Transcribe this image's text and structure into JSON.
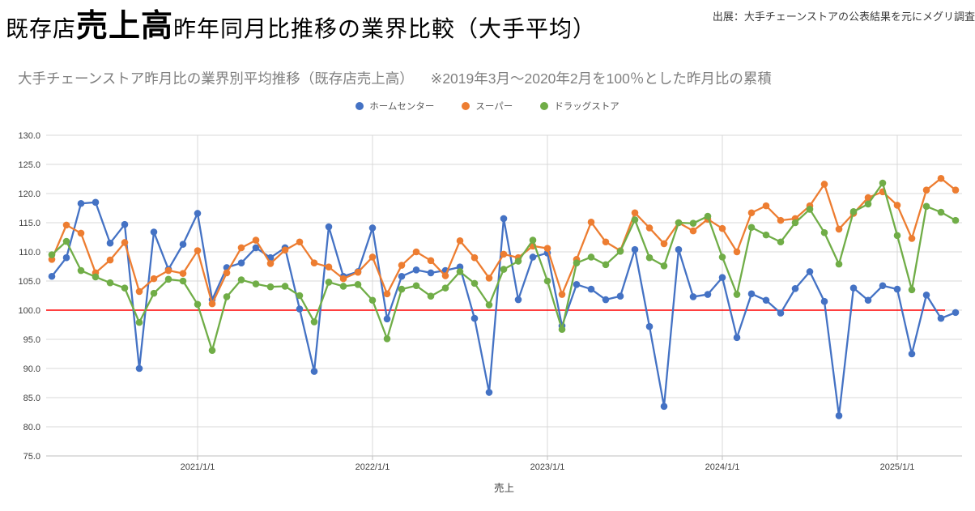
{
  "header": {
    "title_prefix": "既存店",
    "title_emphasis": "売上高",
    "title_suffix": "昨年同月比推移の業界比較（大手平均）",
    "source": "出展：大手チェーンストアの公表結果を元にメグリ調査"
  },
  "chart_data": {
    "type": "line",
    "title": "大手チェーンストア昨月比の業界別平均推移（既存店売上高）",
    "note": "※2019年3月～2020年2月を100％とした昨月比の累積",
    "xlabel": "売上",
    "ylabel": "",
    "ylim": [
      75,
      130
    ],
    "ytick_step": 5,
    "grid": true,
    "legend_position": "top",
    "grid_color": "#D9D9D9",
    "axis_color": "#BFBFBF",
    "tick_color": "#404040",
    "reference_line": {
      "value": 100,
      "color": "#FF0000"
    },
    "xticks": [
      {
        "label": "2021/1/1",
        "month": "2021/1"
      },
      {
        "label": "2022/1/1",
        "month": "2022/1"
      },
      {
        "label": "2023/1/1",
        "month": "2023/1"
      },
      {
        "label": "2024/1/1",
        "month": "2024/1"
      },
      {
        "label": "2025/1/1",
        "month": "2025/1"
      }
    ],
    "x": [
      "2020/3",
      "2020/4",
      "2020/5",
      "2020/6",
      "2020/7",
      "2020/8",
      "2020/9",
      "2020/10",
      "2020/11",
      "2020/12",
      "2021/1",
      "2021/2",
      "2021/3",
      "2021/4",
      "2021/5",
      "2021/6",
      "2021/7",
      "2021/8",
      "2021/9",
      "2021/10",
      "2021/11",
      "2021/12",
      "2022/1",
      "2022/2",
      "2022/3",
      "2022/4",
      "2022/5",
      "2022/6",
      "2022/7",
      "2022/8",
      "2022/9",
      "2022/10",
      "2022/11",
      "2022/12",
      "2023/1",
      "2023/2",
      "2023/3",
      "2023/4",
      "2023/5",
      "2023/6",
      "2023/7",
      "2023/8",
      "2023/9",
      "2023/10",
      "2023/11",
      "2023/12",
      "2024/1",
      "2024/2",
      "2024/3",
      "2024/4",
      "2024/5",
      "2024/6",
      "2024/7",
      "2024/8",
      "2024/9",
      "2024/10",
      "2024/11",
      "2024/12",
      "2025/1",
      "2025/2",
      "2025/3",
      "2025/4",
      "2025/5"
    ],
    "series": [
      {
        "name": "ホームセンター",
        "color": "#4472C4",
        "values": [
          105.8,
          109.0,
          118.3,
          118.5,
          111.5,
          114.7,
          90.0,
          113.4,
          107.0,
          111.3,
          116.6,
          101.8,
          107.3,
          108.1,
          110.7,
          109.0,
          110.7,
          100.2,
          89.5,
          114.3,
          105.8,
          106.6,
          114.1,
          98.5,
          105.8,
          106.9,
          106.4,
          106.8,
          107.4,
          98.6,
          85.9,
          115.7,
          101.8,
          109.1,
          109.8,
          97.3,
          104.4,
          103.6,
          101.8,
          102.4,
          110.4,
          97.2,
          83.5,
          110.4,
          102.3,
          102.7,
          105.6,
          95.3,
          102.8,
          101.7,
          99.5,
          103.7,
          106.6,
          101.5,
          81.9,
          103.8,
          101.7,
          104.2,
          103.6,
          92.5,
          102.6,
          98.6,
          99.6
        ]
      },
      {
        "name": "スーパー",
        "color": "#ED7D31",
        "values": [
          108.7,
          114.6,
          113.2,
          106.4,
          108.6,
          111.6,
          103.2,
          105.4,
          106.8,
          106.3,
          110.2,
          101.1,
          106.4,
          110.7,
          112.0,
          108.0,
          110.3,
          111.7,
          108.1,
          107.4,
          105.4,
          106.5,
          109.1,
          102.8,
          107.7,
          110.0,
          108.5,
          105.9,
          111.9,
          109.0,
          105.5,
          109.6,
          109.0,
          111.0,
          110.6,
          102.7,
          108.7,
          115.1,
          111.7,
          110.2,
          116.7,
          114.1,
          111.4,
          115.0,
          113.6,
          115.6,
          114.0,
          110.0,
          116.7,
          117.9,
          115.4,
          115.7,
          117.9,
          121.6,
          113.9,
          116.6,
          119.3,
          120.3,
          118.0,
          112.3,
          120.6,
          122.6,
          120.6
        ]
      },
      {
        "name": "ドラッグストア",
        "color": "#70AD47",
        "values": [
          109.5,
          111.8,
          106.8,
          105.7,
          104.7,
          103.8,
          97.9,
          102.9,
          105.3,
          105.0,
          101.0,
          93.1,
          102.3,
          105.2,
          104.5,
          104.0,
          104.1,
          102.5,
          98.0,
          104.8,
          104.1,
          104.4,
          101.7,
          95.1,
          103.6,
          104.2,
          102.4,
          103.8,
          106.6,
          104.6,
          100.9,
          107.0,
          108.4,
          112.0,
          105.0,
          96.7,
          108.1,
          109.1,
          107.8,
          110.1,
          115.5,
          109.0,
          107.6,
          115.0,
          114.9,
          116.1,
          109.1,
          102.7,
          114.2,
          112.9,
          111.7,
          115.0,
          117.3,
          113.3,
          107.9,
          116.9,
          118.2,
          121.8,
          112.8,
          103.5,
          117.8,
          116.8,
          115.4
        ]
      }
    ]
  }
}
